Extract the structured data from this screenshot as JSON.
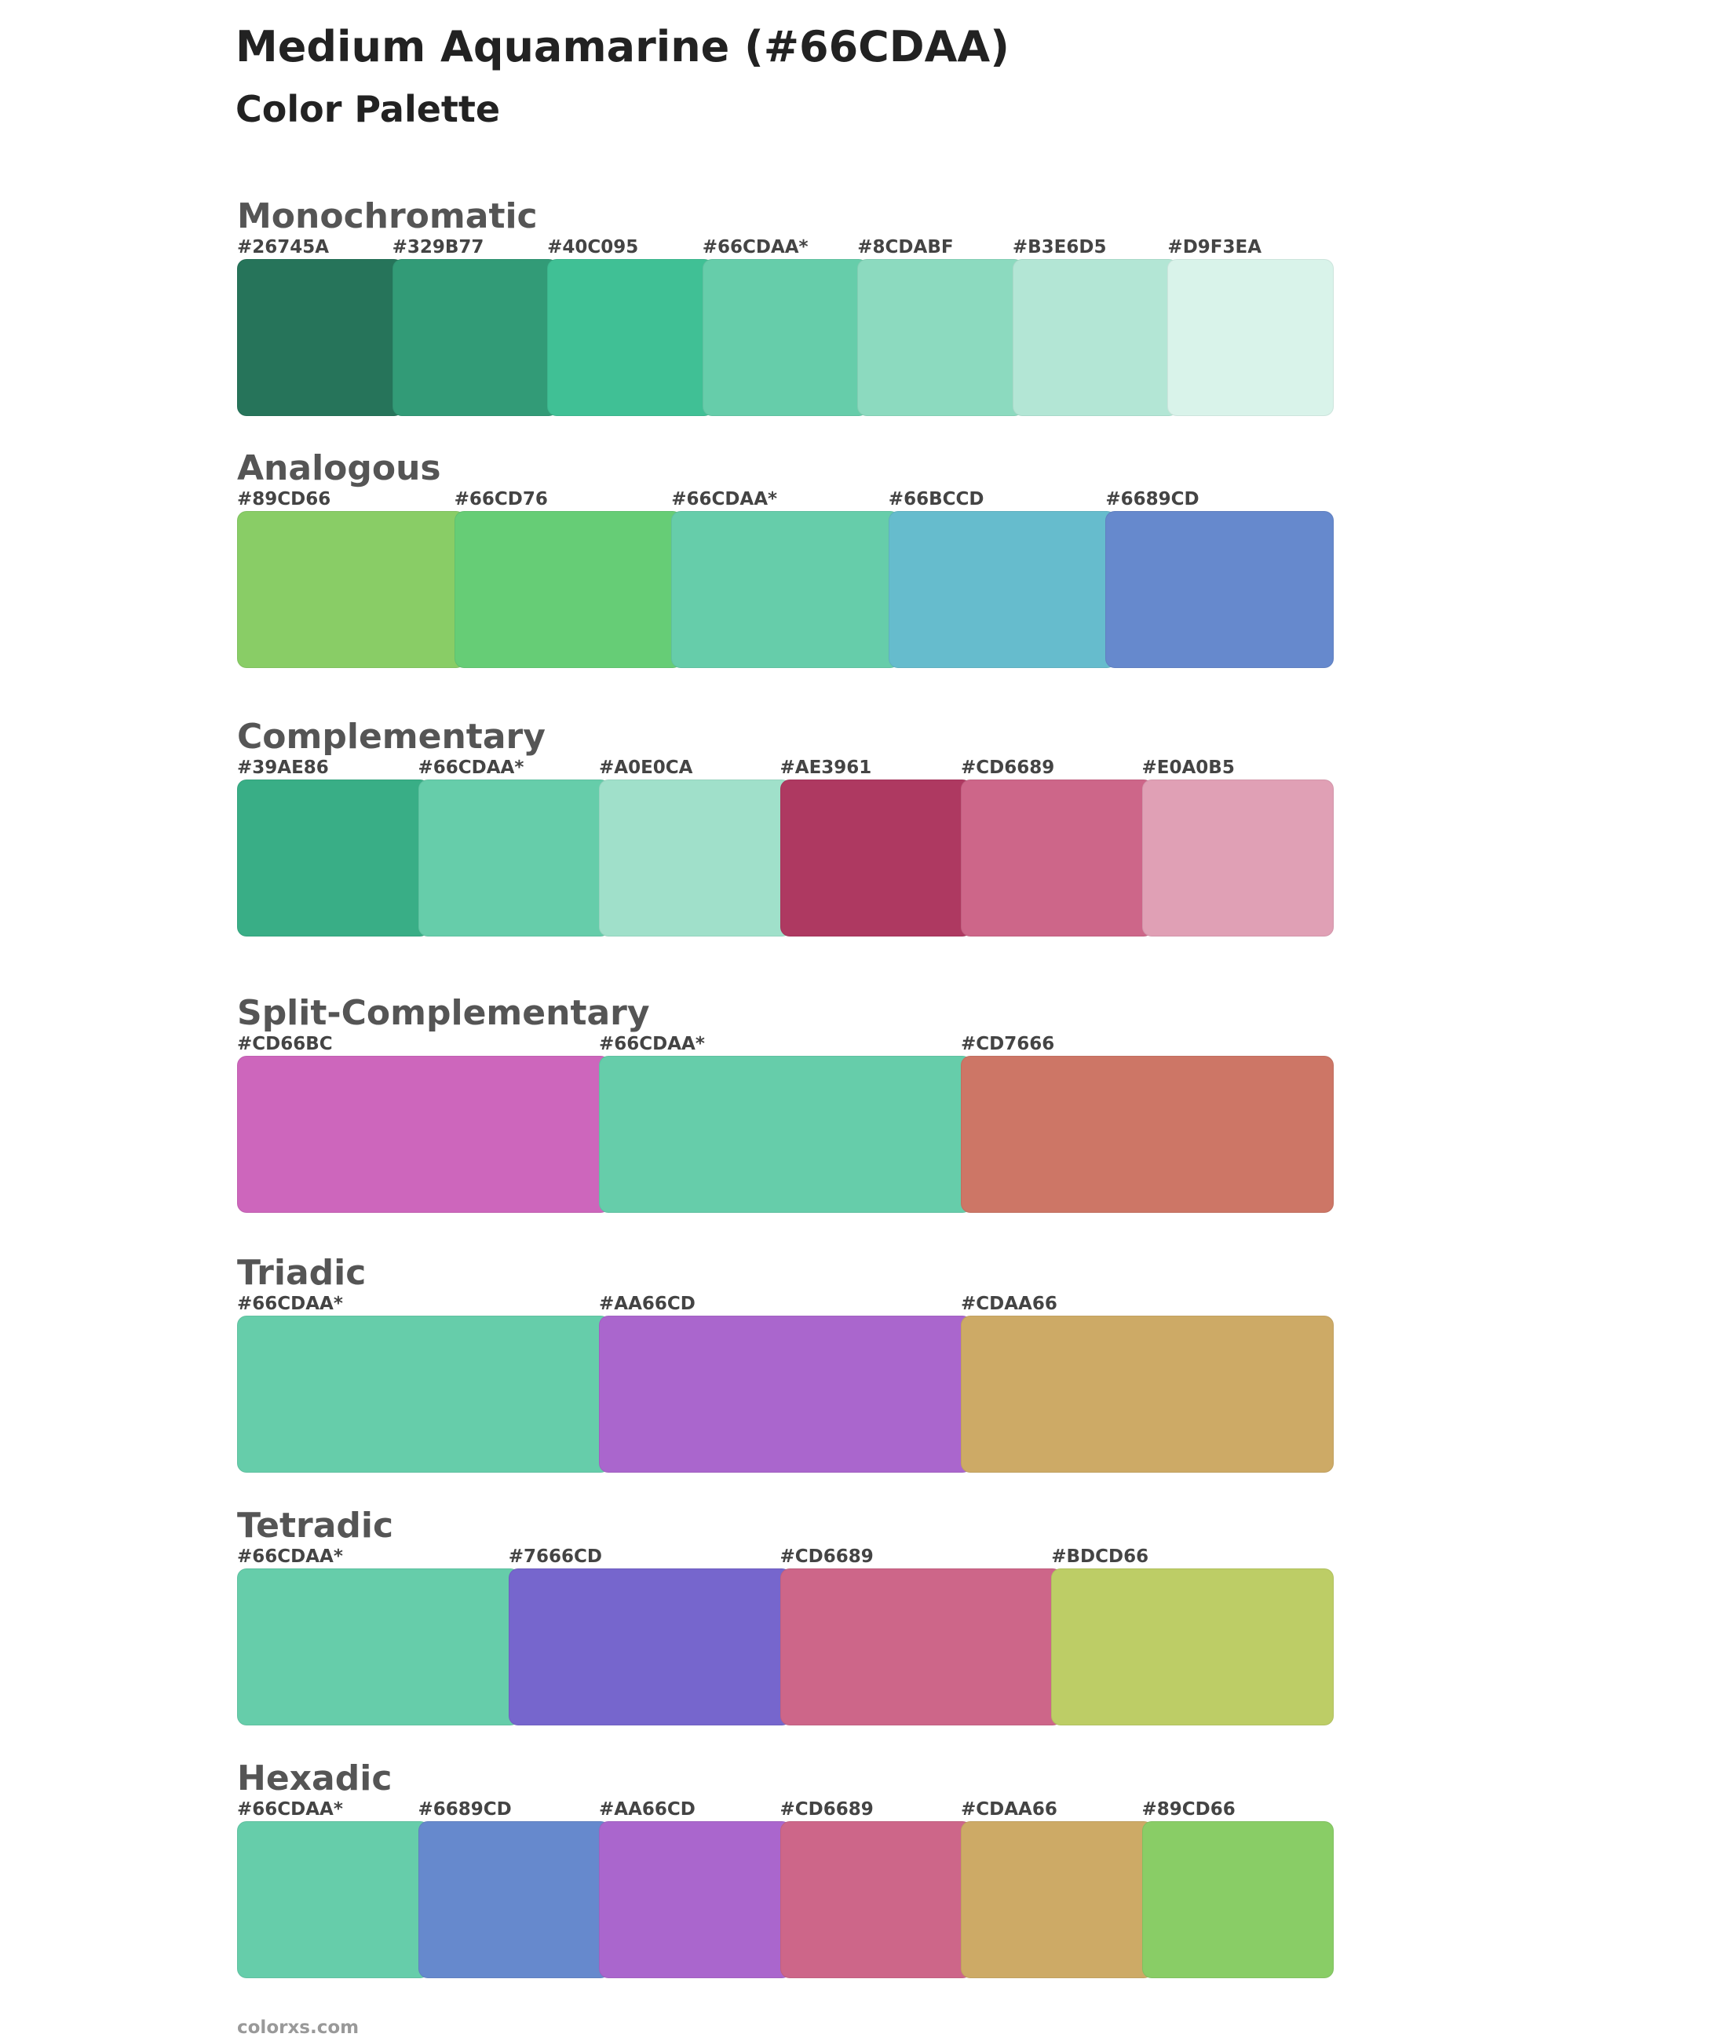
{
  "header": {
    "title": "Medium Aquamarine (#66CDAA)",
    "subtitle": "Color Palette"
  },
  "sections": [
    {
      "name": "Monochromatic",
      "swatches": [
        {
          "label": "#26745A",
          "color": "#26745A"
        },
        {
          "label": "#329B77",
          "color": "#329B77"
        },
        {
          "label": "#40C095",
          "color": "#40C095"
        },
        {
          "label": "#66CDAA*",
          "color": "#66CDAA"
        },
        {
          "label": "#8CDABF",
          "color": "#8CDABF"
        },
        {
          "label": "#B3E6D5",
          "color": "#B3E6D5"
        },
        {
          "label": "#D9F3EA",
          "color": "#D9F3EA"
        }
      ]
    },
    {
      "name": "Analogous",
      "swatches": [
        {
          "label": "#89CD66",
          "color": "#89CD66"
        },
        {
          "label": "#66CD76",
          "color": "#66CD76"
        },
        {
          "label": "#66CDAA*",
          "color": "#66CDAA"
        },
        {
          "label": "#66BCCD",
          "color": "#66BCCD"
        },
        {
          "label": "#6689CD",
          "color": "#6689CD"
        }
      ]
    },
    {
      "name": "Complementary",
      "swatches": [
        {
          "label": "#39AE86",
          "color": "#39AE86"
        },
        {
          "label": "#66CDAA*",
          "color": "#66CDAA"
        },
        {
          "label": "#A0E0CA",
          "color": "#A0E0CA"
        },
        {
          "label": "#AE3961",
          "color": "#AE3961"
        },
        {
          "label": "#CD6689",
          "color": "#CD6689"
        },
        {
          "label": "#E0A0B5",
          "color": "#E0A0B5"
        }
      ]
    },
    {
      "name": "Split-Complementary",
      "swatches": [
        {
          "label": "#CD66BC",
          "color": "#CD66BC"
        },
        {
          "label": "#66CDAA*",
          "color": "#66CDAA"
        },
        {
          "label": "#CD7666",
          "color": "#CD7666"
        }
      ]
    },
    {
      "name": "Triadic",
      "swatches": [
        {
          "label": "#66CDAA*",
          "color": "#66CDAA"
        },
        {
          "label": "#AA66CD",
          "color": "#AA66CD"
        },
        {
          "label": "#CDAA66",
          "color": "#CDAA66"
        }
      ]
    },
    {
      "name": "Tetradic",
      "swatches": [
        {
          "label": "#66CDAA*",
          "color": "#66CDAA"
        },
        {
          "label": "#7666CD",
          "color": "#7666CD"
        },
        {
          "label": "#CD6689",
          "color": "#CD6689"
        },
        {
          "label": "#BDCD66",
          "color": "#BDCD66"
        }
      ]
    },
    {
      "name": "Hexadic",
      "swatches": [
        {
          "label": "#66CDAA*",
          "color": "#66CDAA"
        },
        {
          "label": "#6689CD",
          "color": "#6689CD"
        },
        {
          "label": "#AA66CD",
          "color": "#AA66CD"
        },
        {
          "label": "#CD6689",
          "color": "#CD6689"
        },
        {
          "label": "#CDAA66",
          "color": "#CDAA66"
        },
        {
          "label": "#89CD66",
          "color": "#89CD66"
        }
      ]
    }
  ],
  "footer": "colorxs.com"
}
